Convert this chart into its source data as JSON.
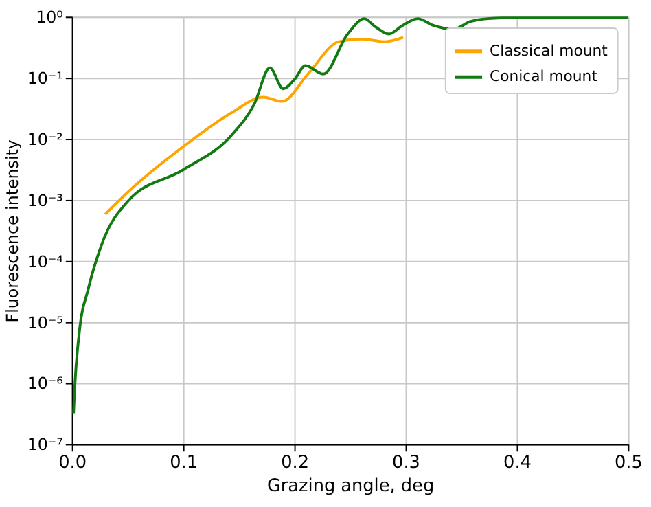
{
  "chart_data": {
    "type": "line",
    "xlabel": "Grazing angle, deg",
    "ylabel": "Fluorescence intensity",
    "log": "y",
    "grid": true,
    "legend": "top right",
    "line_style": "solid",
    "marker": "none",
    "xlim": [
      0,
      0.5
    ],
    "xticks": [
      {
        "value": 0,
        "label": "0.0"
      },
      0.1,
      0.2,
      0.3,
      0.4,
      0.5
    ],
    "ylim": [
      1e-07,
      1
    ],
    "yticks": [
      {
        "value": 1e-07,
        "label": "10⁻⁷"
      },
      {
        "value": 1e-06,
        "label": "10⁻⁶"
      },
      {
        "value": 1e-05,
        "label": "10⁻⁵"
      },
      {
        "value": 0.0001,
        "label": "10⁻⁴"
      },
      {
        "value": 0.001,
        "label": "10⁻³"
      },
      {
        "value": 0.01,
        "label": "10⁻²"
      },
      {
        "value": 0.1,
        "label": "10⁻¹"
      },
      {
        "value": 1,
        "label": "10⁰"
      }
    ],
    "series": [
      {
        "name": "Classical mount",
        "color": "#ffa500",
        "x": [
          0.03,
          0.055,
          0.1,
          0.144,
          0.172,
          0.189,
          0.2127,
          0.24,
          0.261,
          0.281,
          0.298
        ],
        "values": [
          0.00058,
          0.0016,
          0.0074,
          0.027,
          0.048,
          0.041,
          0.118,
          0.39,
          0.43,
          0.39,
          0.46
        ]
      },
      {
        "name": "Conical mount",
        "color": "#117a11",
        "x": [
          0.0015,
          0.0027,
          0.0067,
          0.0148,
          0.027,
          0.051,
          0.1,
          0.144,
          0.164,
          0.178,
          0.19,
          0.2,
          0.21,
          0.226,
          0.248,
          0.263,
          0.273,
          0.285,
          0.297,
          0.311,
          0.325,
          0.343,
          0.358,
          0.374,
          0.4,
          0.45,
          0.5
        ],
        "values": [
          3.2e-07,
          9.3e-07,
          6.8e-06,
          3.5e-05,
          0.00019,
          0.00098,
          0.0031,
          0.0117,
          0.037,
          0.145,
          0.066,
          0.093,
          0.158,
          0.115,
          0.52,
          0.93,
          0.68,
          0.52,
          0.71,
          0.93,
          0.72,
          0.62,
          0.83,
          0.93,
          0.97,
          0.98,
          0.97
        ]
      }
    ]
  }
}
